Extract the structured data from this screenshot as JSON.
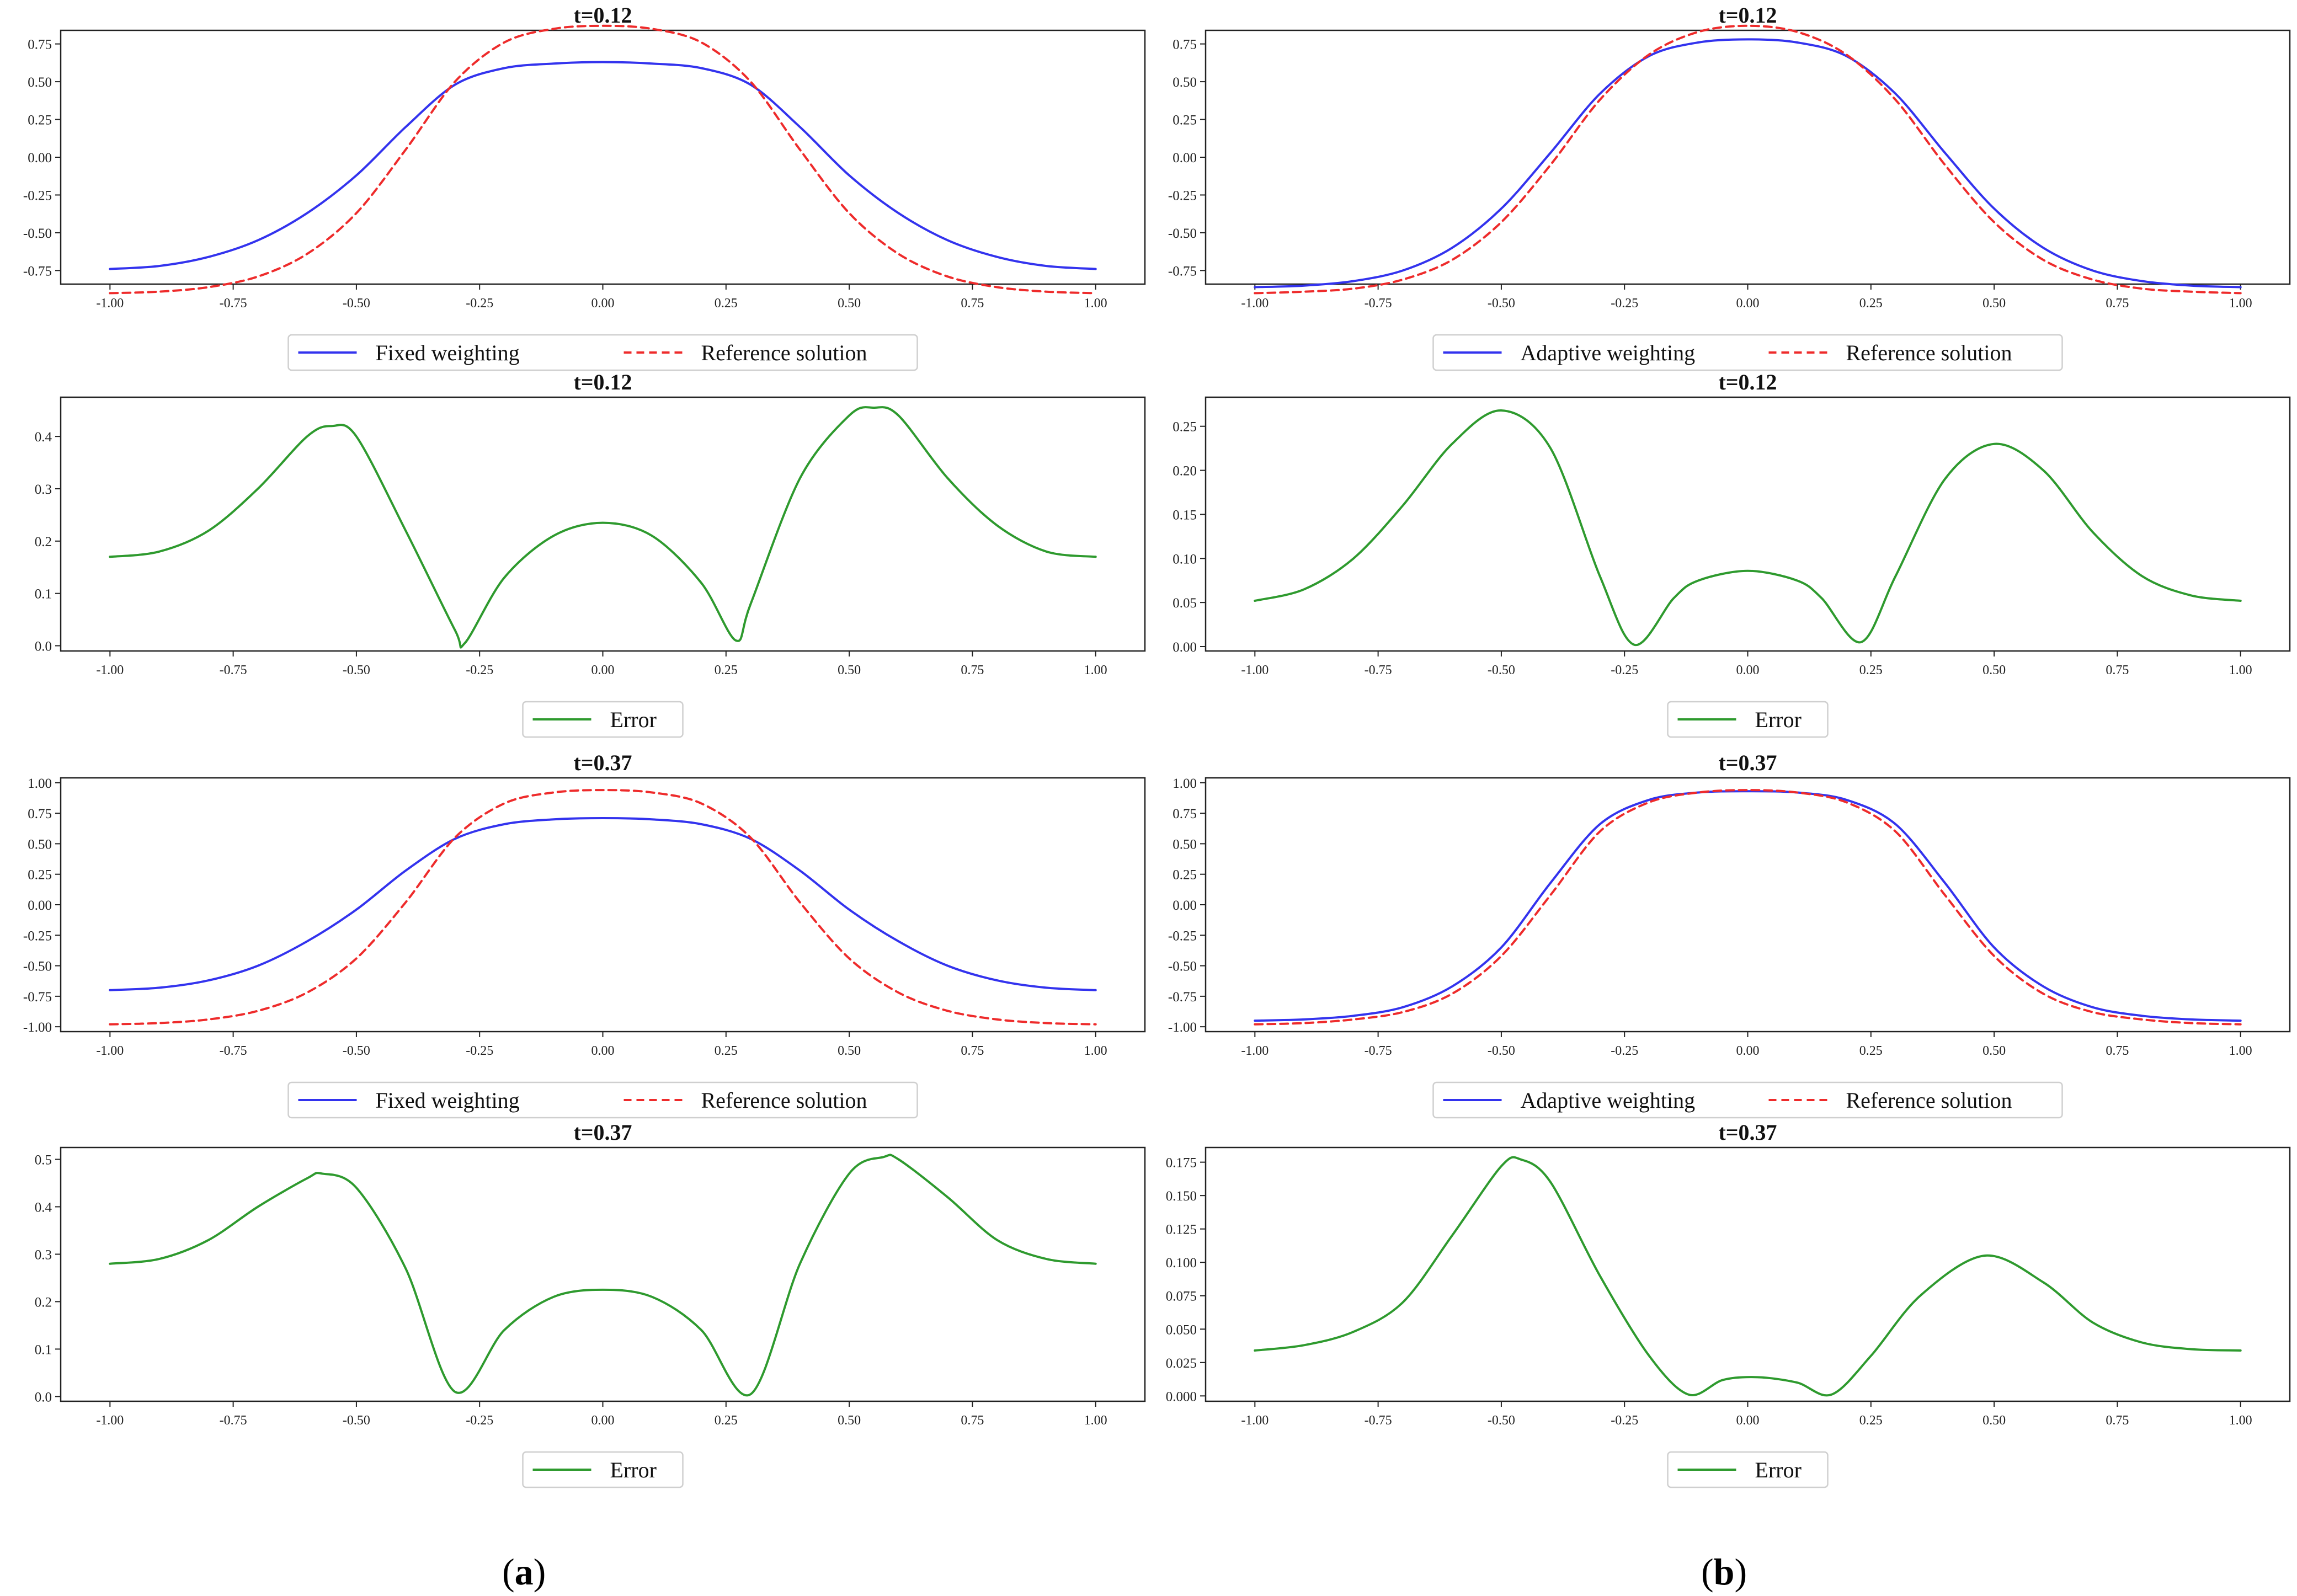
{
  "panel_labels": {
    "a": "a",
    "b": "b"
  },
  "colors": {
    "blue": "#3333ee",
    "red": "#ee2b2b",
    "green": "#2e9a2e",
    "axis": "#222222"
  },
  "chart_data": [
    {
      "id": "a1",
      "type": "line",
      "title": "t=0.12",
      "xlim": [
        -1,
        1
      ],
      "ylim": [
        -0.84,
        0.84
      ],
      "xticks": [
        "-1.00",
        "-0.75",
        "-0.50",
        "-0.25",
        "0.00",
        "0.25",
        "0.50",
        "0.75",
        "1.00"
      ],
      "yticks": [
        -0.75,
        -0.5,
        -0.25,
        0,
        0.25,
        0.5,
        0.75
      ],
      "ytick_labels": [
        "-0.75",
        "-0.50",
        "-0.25",
        "0.00",
        "0.25",
        "0.50",
        "0.75"
      ],
      "x": [
        -1,
        -0.9,
        -0.8,
        -0.7,
        -0.6,
        -0.5,
        -0.4,
        -0.3,
        -0.2,
        -0.1,
        0,
        0.1,
        0.2,
        0.3,
        0.4,
        0.5,
        0.6,
        0.7,
        0.8,
        0.9,
        1
      ],
      "series": [
        {
          "name": "Fixed weighting",
          "style": "solid",
          "color_key": "blue",
          "values": [
            -0.74,
            -0.72,
            -0.66,
            -0.55,
            -0.37,
            -0.12,
            0.2,
            0.48,
            0.59,
            0.62,
            0.63,
            0.62,
            0.59,
            0.48,
            0.2,
            -0.12,
            -0.37,
            -0.55,
            -0.66,
            -0.72,
            -0.74
          ]
        },
        {
          "name": "Reference solution",
          "style": "dashed",
          "color_key": "red",
          "values": [
            -0.9,
            -0.89,
            -0.86,
            -0.79,
            -0.64,
            -0.37,
            0.05,
            0.5,
            0.76,
            0.85,
            0.87,
            0.85,
            0.76,
            0.5,
            0.05,
            -0.37,
            -0.64,
            -0.79,
            -0.86,
            -0.89,
            -0.9
          ]
        }
      ],
      "legend": [
        "Fixed weighting",
        "Reference solution"
      ]
    },
    {
      "id": "b1",
      "type": "line",
      "title": "t=0.12",
      "xlim": [
        -1,
        1
      ],
      "ylim": [
        -0.84,
        0.84
      ],
      "xticks": [
        "-1.00",
        "-0.75",
        "-0.50",
        "-0.25",
        "0.00",
        "0.25",
        "0.50",
        "0.75",
        "1.00"
      ],
      "yticks": [
        -0.75,
        -0.5,
        -0.25,
        0,
        0.25,
        0.5,
        0.75
      ],
      "ytick_labels": [
        "-0.75",
        "-0.50",
        "-0.25",
        "0.00",
        "0.25",
        "0.50",
        "0.75"
      ],
      "x": [
        -1,
        -0.9,
        -0.8,
        -0.7,
        -0.6,
        -0.5,
        -0.4,
        -0.3,
        -0.2,
        -0.1,
        0,
        0.1,
        0.2,
        0.3,
        0.4,
        0.5,
        0.6,
        0.7,
        0.8,
        0.9,
        1
      ],
      "series": [
        {
          "name": "Adaptive weighting",
          "style": "solid",
          "color_key": "blue",
          "values": [
            -0.86,
            -0.85,
            -0.82,
            -0.75,
            -0.6,
            -0.34,
            0.03,
            0.42,
            0.67,
            0.76,
            0.78,
            0.76,
            0.67,
            0.42,
            0.03,
            -0.34,
            -0.6,
            -0.75,
            -0.82,
            -0.85,
            -0.86
          ]
        },
        {
          "name": "Reference solution",
          "style": "dashed",
          "color_key": "red",
          "values": [
            -0.9,
            -0.89,
            -0.87,
            -0.81,
            -0.68,
            -0.43,
            -0.05,
            0.38,
            0.68,
            0.83,
            0.87,
            0.83,
            0.68,
            0.38,
            -0.05,
            -0.43,
            -0.68,
            -0.81,
            -0.87,
            -0.89,
            -0.9
          ]
        }
      ],
      "legend": [
        "Adaptive weighting",
        "Reference solution"
      ]
    },
    {
      "id": "a2",
      "type": "line",
      "title": "t=0.12",
      "xlim": [
        -1,
        1
      ],
      "ylim": [
        -0.01,
        0.475
      ],
      "xticks": [
        "-1.00",
        "-0.75",
        "-0.50",
        "-0.25",
        "0.00",
        "0.25",
        "0.50",
        "0.75",
        "1.00"
      ],
      "yticks": [
        0,
        0.1,
        0.2,
        0.3,
        0.4
      ],
      "ytick_labels": [
        "0.0",
        "0.1",
        "0.2",
        "0.3",
        "0.4"
      ],
      "x": [
        -1,
        -0.9,
        -0.8,
        -0.7,
        -0.6,
        -0.55,
        -0.5,
        -0.4,
        -0.3,
        -0.28,
        -0.2,
        -0.1,
        0,
        0.1,
        0.2,
        0.27,
        0.3,
        0.4,
        0.5,
        0.55,
        0.6,
        0.7,
        0.8,
        0.9,
        1
      ],
      "series": [
        {
          "name": "Error",
          "style": "solid",
          "color_key": "green",
          "values": [
            0.17,
            0.18,
            0.22,
            0.3,
            0.4,
            0.42,
            0.4,
            0.22,
            0.03,
            0.005,
            0.13,
            0.21,
            0.235,
            0.21,
            0.12,
            0.01,
            0.08,
            0.32,
            0.44,
            0.455,
            0.44,
            0.32,
            0.23,
            0.18,
            0.17
          ]
        }
      ],
      "legend": [
        "Error"
      ]
    },
    {
      "id": "b2",
      "type": "line",
      "title": "t=0.12",
      "xlim": [
        -1,
        1
      ],
      "ylim": [
        -0.005,
        0.283
      ],
      "xticks": [
        "-1.00",
        "-0.75",
        "-0.50",
        "-0.25",
        "0.00",
        "0.25",
        "0.50",
        "0.75",
        "1.00"
      ],
      "yticks": [
        0,
        0.05,
        0.1,
        0.15,
        0.2,
        0.25
      ],
      "ytick_labels": [
        "0.00",
        "0.05",
        "0.10",
        "0.15",
        "0.20",
        "0.25"
      ],
      "x": [
        -1,
        -0.9,
        -0.8,
        -0.7,
        -0.6,
        -0.5,
        -0.4,
        -0.3,
        -0.23,
        -0.15,
        -0.1,
        0,
        0.1,
        0.15,
        0.23,
        0.3,
        0.4,
        0.5,
        0.6,
        0.7,
        0.8,
        0.9,
        1
      ],
      "series": [
        {
          "name": "Error",
          "style": "solid",
          "color_key": "green",
          "values": [
            0.052,
            0.065,
            0.1,
            0.16,
            0.23,
            0.268,
            0.225,
            0.08,
            0.002,
            0.055,
            0.075,
            0.086,
            0.075,
            0.055,
            0.005,
            0.08,
            0.19,
            0.23,
            0.2,
            0.13,
            0.08,
            0.058,
            0.052
          ]
        }
      ],
      "legend": [
        "Error"
      ]
    },
    {
      "id": "a3",
      "type": "line",
      "title": "t=0.37",
      "xlim": [
        -1,
        1
      ],
      "ylim": [
        -1.04,
        1.04
      ],
      "xticks": [
        "-1.00",
        "-0.75",
        "-0.50",
        "-0.25",
        "0.00",
        "0.25",
        "0.50",
        "0.75",
        "1.00"
      ],
      "yticks": [
        -1,
        -0.75,
        -0.5,
        -0.25,
        0,
        0.25,
        0.5,
        0.75,
        1
      ],
      "ytick_labels": [
        "-1.00",
        "-0.75",
        "-0.50",
        "-0.25",
        "0.00",
        "0.25",
        "0.50",
        "0.75",
        "1.00"
      ],
      "x": [
        -1,
        -0.9,
        -0.8,
        -0.7,
        -0.6,
        -0.5,
        -0.4,
        -0.3,
        -0.2,
        -0.1,
        0,
        0.1,
        0.2,
        0.3,
        0.4,
        0.5,
        0.6,
        0.7,
        0.8,
        0.9,
        1
      ],
      "series": [
        {
          "name": "Fixed weighting",
          "style": "solid",
          "color_key": "blue",
          "values": [
            -0.7,
            -0.68,
            -0.62,
            -0.5,
            -0.3,
            -0.04,
            0.28,
            0.54,
            0.66,
            0.7,
            0.71,
            0.7,
            0.66,
            0.54,
            0.28,
            -0.04,
            -0.3,
            -0.5,
            -0.62,
            -0.68,
            -0.7
          ]
        },
        {
          "name": "Reference solution",
          "style": "dashed",
          "color_key": "red",
          "values": [
            -0.98,
            -0.97,
            -0.94,
            -0.87,
            -0.72,
            -0.44,
            0.02,
            0.55,
            0.83,
            0.92,
            0.94,
            0.92,
            0.83,
            0.55,
            0.02,
            -0.44,
            -0.72,
            -0.87,
            -0.94,
            -0.97,
            -0.98
          ]
        }
      ],
      "legend": [
        "Fixed weighting",
        "Reference solution"
      ]
    },
    {
      "id": "b3",
      "type": "line",
      "title": "t=0.37",
      "xlim": [
        -1,
        1
      ],
      "ylim": [
        -1.04,
        1.04
      ],
      "xticks": [
        "-1.00",
        "-0.75",
        "-0.50",
        "-0.25",
        "0.00",
        "0.25",
        "0.50",
        "0.75",
        "1.00"
      ],
      "yticks": [
        -1,
        -0.75,
        -0.5,
        -0.25,
        0,
        0.25,
        0.5,
        0.75,
        1
      ],
      "ytick_labels": [
        "-1.00",
        "-0.75",
        "-0.50",
        "-0.25",
        "0.00",
        "0.25",
        "0.50",
        "0.75",
        "1.00"
      ],
      "x": [
        -1,
        -0.9,
        -0.8,
        -0.7,
        -0.6,
        -0.5,
        -0.4,
        -0.3,
        -0.2,
        -0.1,
        0,
        0.1,
        0.2,
        0.3,
        0.4,
        0.5,
        0.6,
        0.7,
        0.8,
        0.9,
        1
      ],
      "series": [
        {
          "name": "Adaptive weighting",
          "style": "solid",
          "color_key": "blue",
          "values": [
            -0.95,
            -0.94,
            -0.91,
            -0.84,
            -0.67,
            -0.35,
            0.18,
            0.66,
            0.86,
            0.92,
            0.93,
            0.92,
            0.86,
            0.66,
            0.18,
            -0.35,
            -0.67,
            -0.84,
            -0.91,
            -0.94,
            -0.95
          ]
        },
        {
          "name": "Reference solution",
          "style": "dashed",
          "color_key": "red",
          "values": [
            -0.98,
            -0.97,
            -0.94,
            -0.88,
            -0.73,
            -0.42,
            0.08,
            0.6,
            0.84,
            0.92,
            0.94,
            0.92,
            0.84,
            0.6,
            0.08,
            -0.42,
            -0.73,
            -0.88,
            -0.94,
            -0.97,
            -0.98
          ]
        }
      ],
      "legend": [
        "Adaptive weighting",
        "Reference solution"
      ]
    },
    {
      "id": "a4",
      "type": "line",
      "title": "t=0.37",
      "xlim": [
        -1,
        1
      ],
      "ylim": [
        -0.01,
        0.525
      ],
      "xticks": [
        "-1.00",
        "-0.75",
        "-0.50",
        "-0.25",
        "0.00",
        "0.25",
        "0.50",
        "0.75",
        "1.00"
      ],
      "yticks": [
        0,
        0.1,
        0.2,
        0.3,
        0.4,
        0.5
      ],
      "ytick_labels": [
        "0.0",
        "0.1",
        "0.2",
        "0.3",
        "0.4",
        "0.5"
      ],
      "x": [
        -1,
        -0.9,
        -0.8,
        -0.7,
        -0.6,
        -0.57,
        -0.5,
        -0.4,
        -0.3,
        -0.2,
        -0.1,
        0,
        0.1,
        0.2,
        0.3,
        0.4,
        0.5,
        0.57,
        0.6,
        0.7,
        0.8,
        0.9,
        1
      ],
      "series": [
        {
          "name": "Error",
          "style": "solid",
          "color_key": "green",
          "values": [
            0.28,
            0.29,
            0.33,
            0.4,
            0.46,
            0.47,
            0.44,
            0.27,
            0.01,
            0.14,
            0.21,
            0.225,
            0.21,
            0.14,
            0.005,
            0.28,
            0.47,
            0.505,
            0.5,
            0.42,
            0.33,
            0.29,
            0.28
          ]
        }
      ],
      "legend": [
        "Error"
      ]
    },
    {
      "id": "b4",
      "type": "line",
      "title": "t=0.37",
      "xlim": [
        -1,
        1
      ],
      "ylim": [
        -0.004,
        0.186
      ],
      "xticks": [
        "-1.00",
        "-0.75",
        "-0.50",
        "-0.25",
        "0.00",
        "0.25",
        "0.50",
        "0.75",
        "1.00"
      ],
      "yticks": [
        0,
        0.025,
        0.05,
        0.075,
        0.1,
        0.125,
        0.15,
        0.175
      ],
      "ytick_labels": [
        "0.000",
        "0.025",
        "0.050",
        "0.075",
        "0.100",
        "0.125",
        "0.150",
        "0.175"
      ],
      "x": [
        -1,
        -0.9,
        -0.8,
        -0.7,
        -0.6,
        -0.5,
        -0.46,
        -0.4,
        -0.3,
        -0.2,
        -0.12,
        -0.05,
        0.02,
        0.1,
        0.17,
        0.25,
        0.35,
        0.48,
        0.6,
        0.7,
        0.8,
        0.9,
        1
      ],
      "series": [
        {
          "name": "Error",
          "style": "solid",
          "color_key": "green",
          "values": [
            0.034,
            0.038,
            0.048,
            0.07,
            0.12,
            0.172,
            0.177,
            0.16,
            0.09,
            0.03,
            0.001,
            0.012,
            0.014,
            0.01,
            0.001,
            0.03,
            0.075,
            0.105,
            0.085,
            0.055,
            0.04,
            0.035,
            0.034
          ]
        }
      ],
      "legend": [
        "Error"
      ]
    }
  ]
}
